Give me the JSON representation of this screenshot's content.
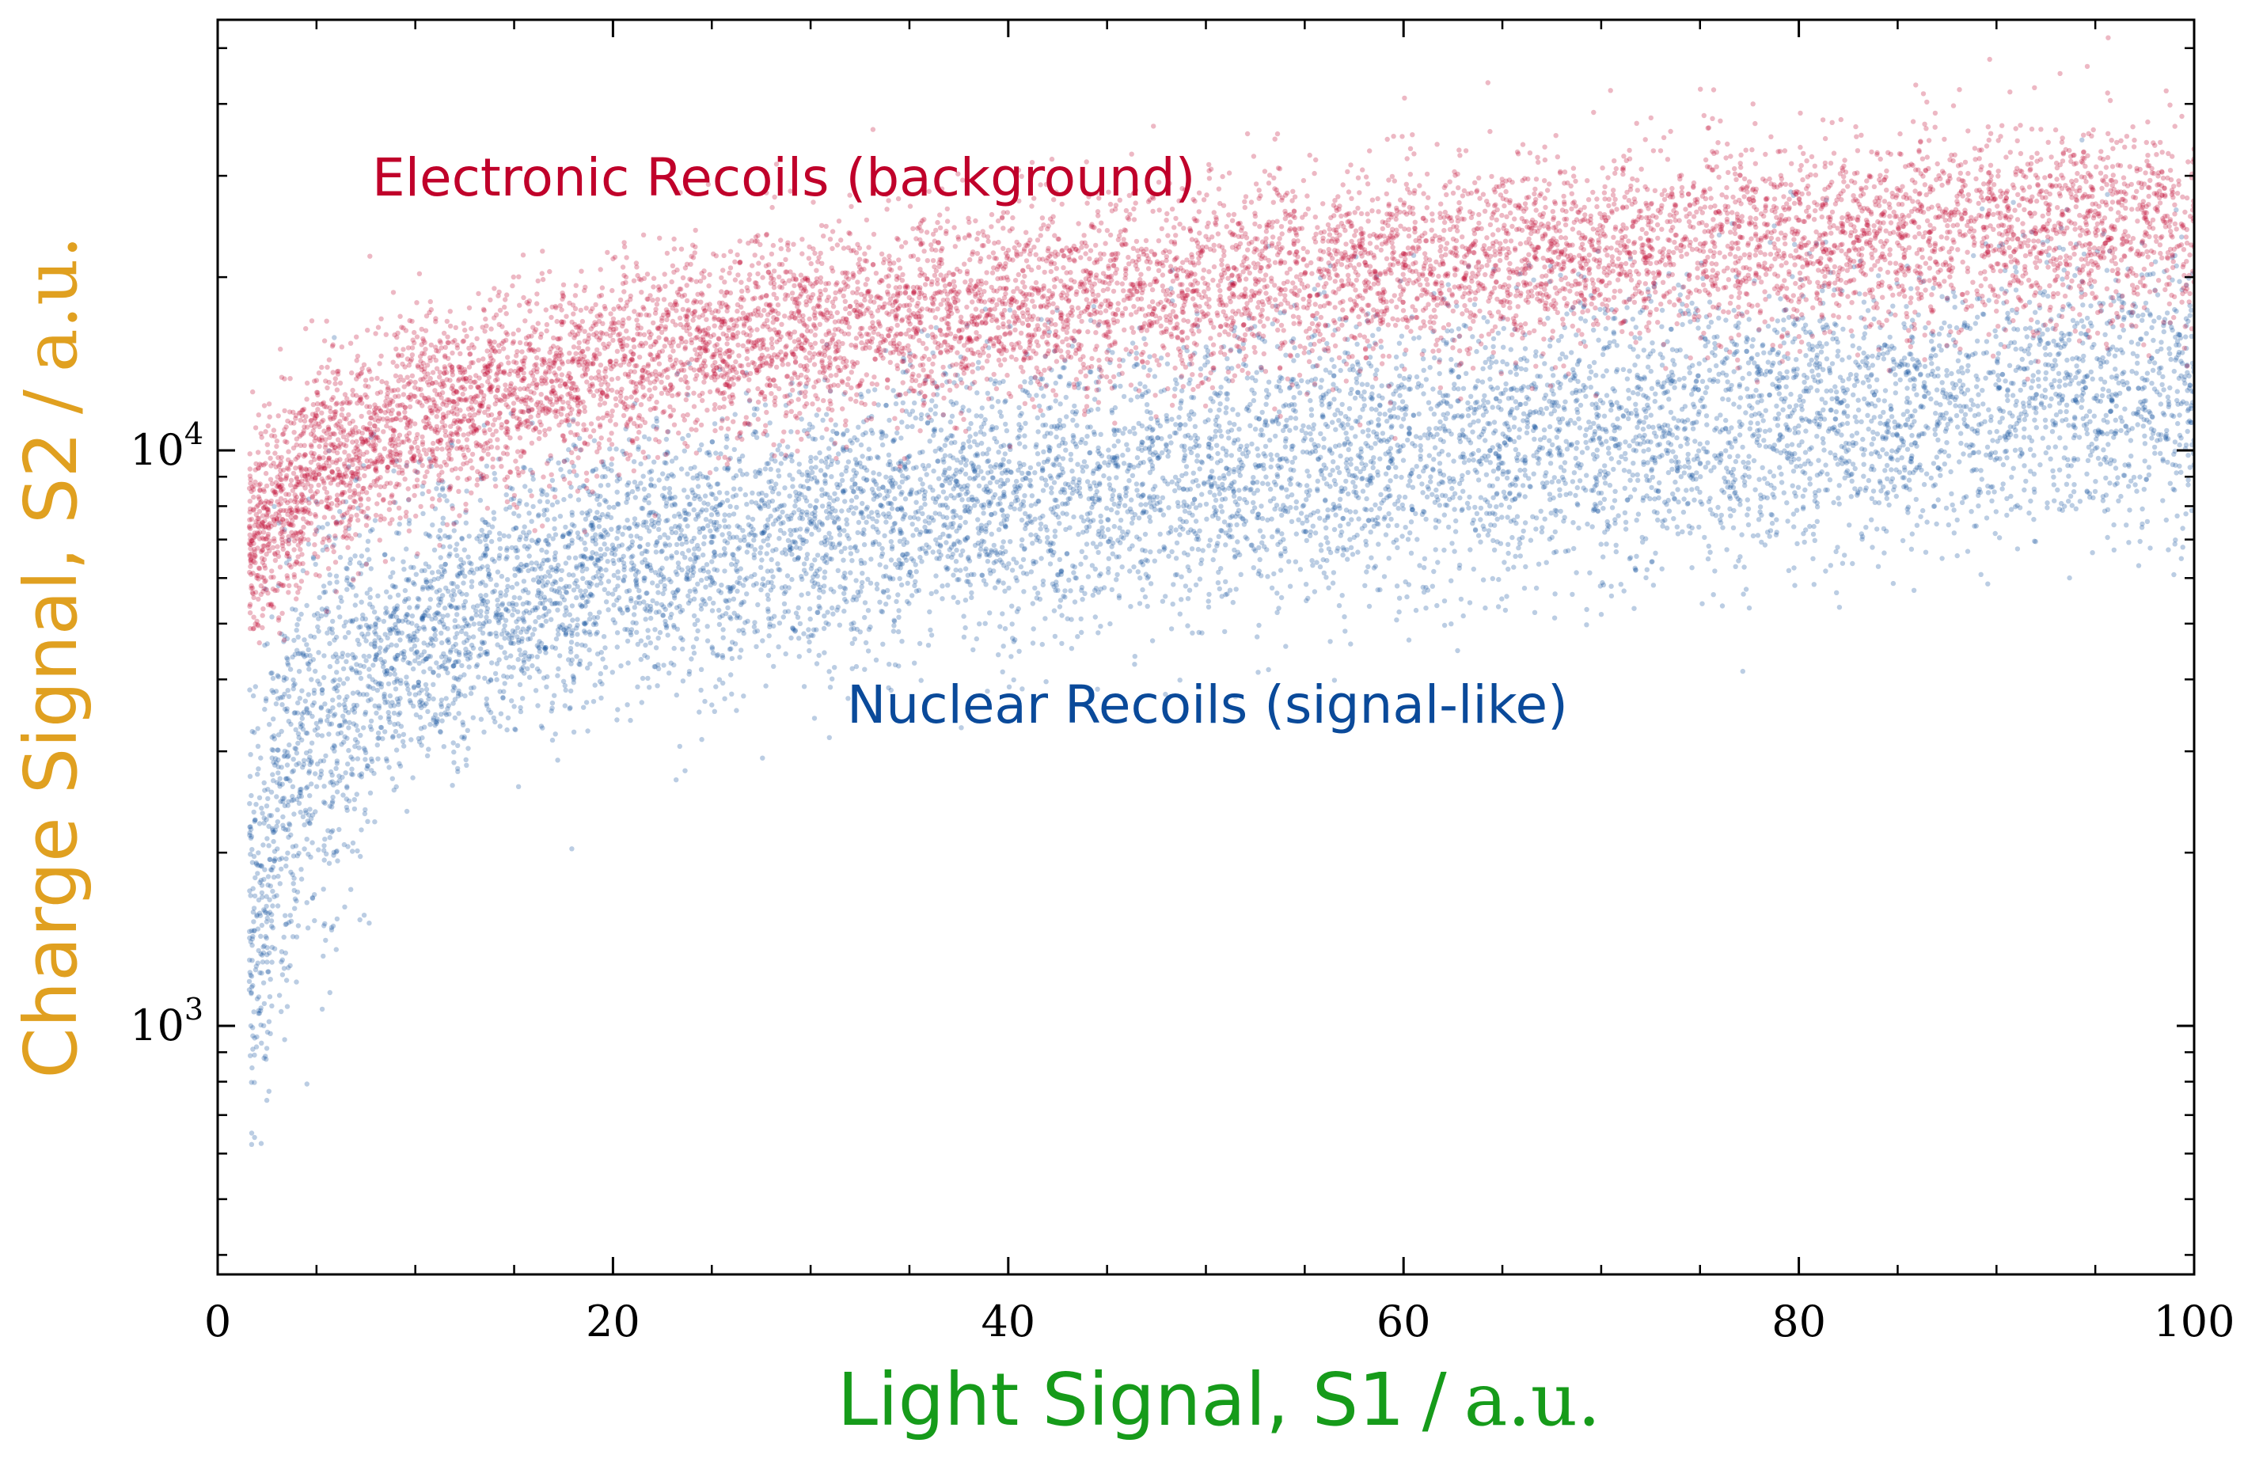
{
  "chart_data": {
    "type": "scatter",
    "title": "",
    "xlabel": {
      "main": "Light Signal, S1",
      "unit": "a.u."
    },
    "ylabel": {
      "main": "Charge Signal, S2",
      "unit": "a.u."
    },
    "xlim": [
      0,
      100
    ],
    "ylim": [
      370,
      56000
    ],
    "yscale": "log",
    "x_ticks": [
      0,
      20,
      40,
      60,
      80,
      100
    ],
    "x_tick_labels": [
      "0",
      "20",
      "40",
      "60",
      "80",
      "100"
    ],
    "y_major_ticks": [
      1000,
      10000
    ],
    "y_tick_labels": [
      {
        "base": "10",
        "exp": "3"
      },
      {
        "base": "10",
        "exp": "4"
      }
    ],
    "grid": false,
    "legend": "none",
    "series": [
      {
        "name": "Electronic Recoils (background)",
        "color": "#C0002A",
        "median_curve": {
          "x": [
            2,
            5,
            10,
            20,
            30,
            40,
            50,
            60,
            70,
            80,
            90,
            100
          ],
          "y": [
            7000,
            9300,
            11500,
            14200,
            16300,
            18000,
            19500,
            21000,
            22200,
            23300,
            24300,
            25300
          ]
        },
        "log10_spread": 0.085
      },
      {
        "name": "Nuclear Recoils (signal-like)",
        "color": "#0A4A9A",
        "median_curve": {
          "x": [
            2,
            3,
            5,
            10,
            20,
            30,
            40,
            50,
            60,
            70,
            80,
            90,
            100
          ],
          "y": [
            1500,
            2400,
            3300,
            4700,
            6300,
            7400,
            8300,
            9100,
            9900,
            10600,
            11300,
            12000,
            12800
          ]
        },
        "log10_spread": 0.12
      }
    ],
    "annotations": [
      {
        "text": "Electronic Recoils (background)",
        "color": "#C0002A"
      },
      {
        "text": "Nuclear Recoils (signal-like)",
        "color": "#0A4A9A"
      }
    ],
    "colors": {
      "xlabel": "#169B1A",
      "ylabel": "#E0A020",
      "axes": "#000000"
    }
  }
}
